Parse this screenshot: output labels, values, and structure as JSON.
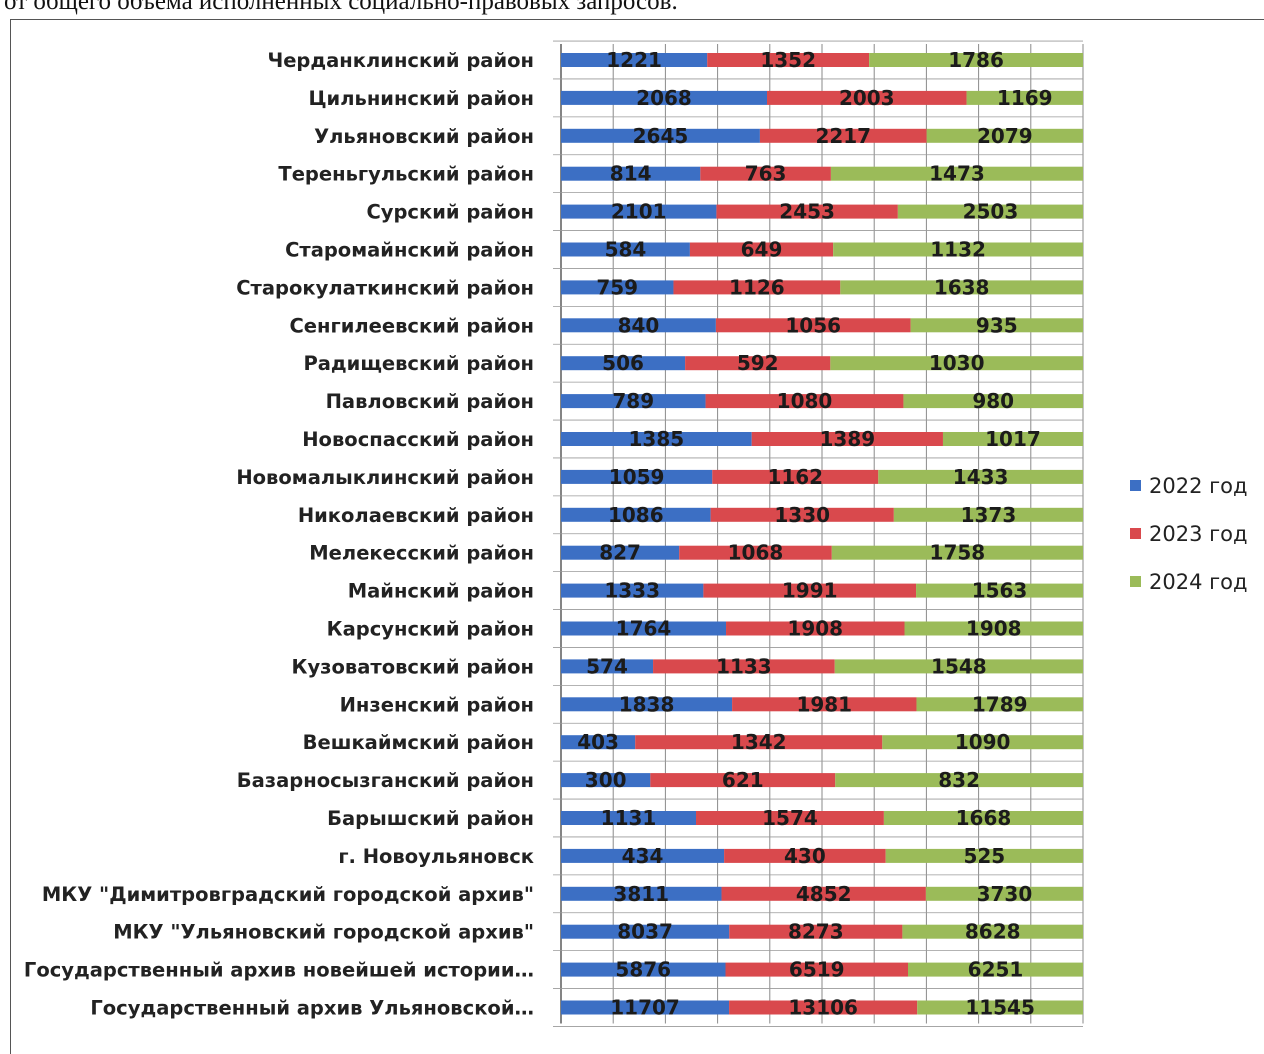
{
  "header": {
    "text": "от общего объема исполненных социально-правовых запросов."
  },
  "chart_data": {
    "type": "bar",
    "orientation": "horizontal",
    "stacked": "percent",
    "legend_position": "right",
    "grid": true,
    "categories": [
      "Черданклинский район",
      "Цильнинский район",
      "Ульяновский район",
      "Тереньгульский район",
      "Сурский район",
      "Старомайнский район",
      "Старокулаткинский район",
      "Сенгилеевский район",
      "Радищевский район",
      "Павловский район",
      "Новоспасский район",
      "Новомалыклинский район",
      "Николаевский район",
      "Мелекесский район",
      "Майнский район",
      "Карсунский район",
      "Кузоватовский район",
      "Инзенский район",
      "Вешкаймский район",
      "Базарносызганский район",
      "Барышский район",
      "г. Новоульяновск",
      "МКУ \"Димитровградский городской архив\"",
      "МКУ \"Ульяновский городской архив\"",
      "Государственный архив новейшей истории…",
      "Государственный архив Ульяновской…"
    ],
    "series": [
      {
        "name": "2022 год",
        "color": "#3c6fc4",
        "values": [
          1221,
          2068,
          2645,
          814,
          2101,
          584,
          759,
          840,
          506,
          789,
          1385,
          1059,
          1086,
          827,
          1333,
          1764,
          574,
          1838,
          403,
          300,
          1131,
          434,
          3811,
          8037,
          5876,
          11707
        ]
      },
      {
        "name": "2023 год",
        "color": "#d9494d",
        "values": [
          1352,
          2003,
          2217,
          763,
          2453,
          649,
          1126,
          1056,
          592,
          1080,
          1389,
          1162,
          1330,
          1068,
          1991,
          1908,
          1133,
          1981,
          1342,
          621,
          1574,
          430,
          4852,
          8273,
          6519,
          13106
        ]
      },
      {
        "name": "2024 год",
        "color": "#9bbb59",
        "values": [
          1786,
          1169,
          2079,
          1473,
          2503,
          1132,
          1638,
          935,
          1030,
          980,
          1017,
          1433,
          1373,
          1758,
          1563,
          1908,
          1548,
          1789,
          1090,
          832,
          1668,
          525,
          3730,
          8628,
          6251,
          11545
        ]
      }
    ]
  }
}
